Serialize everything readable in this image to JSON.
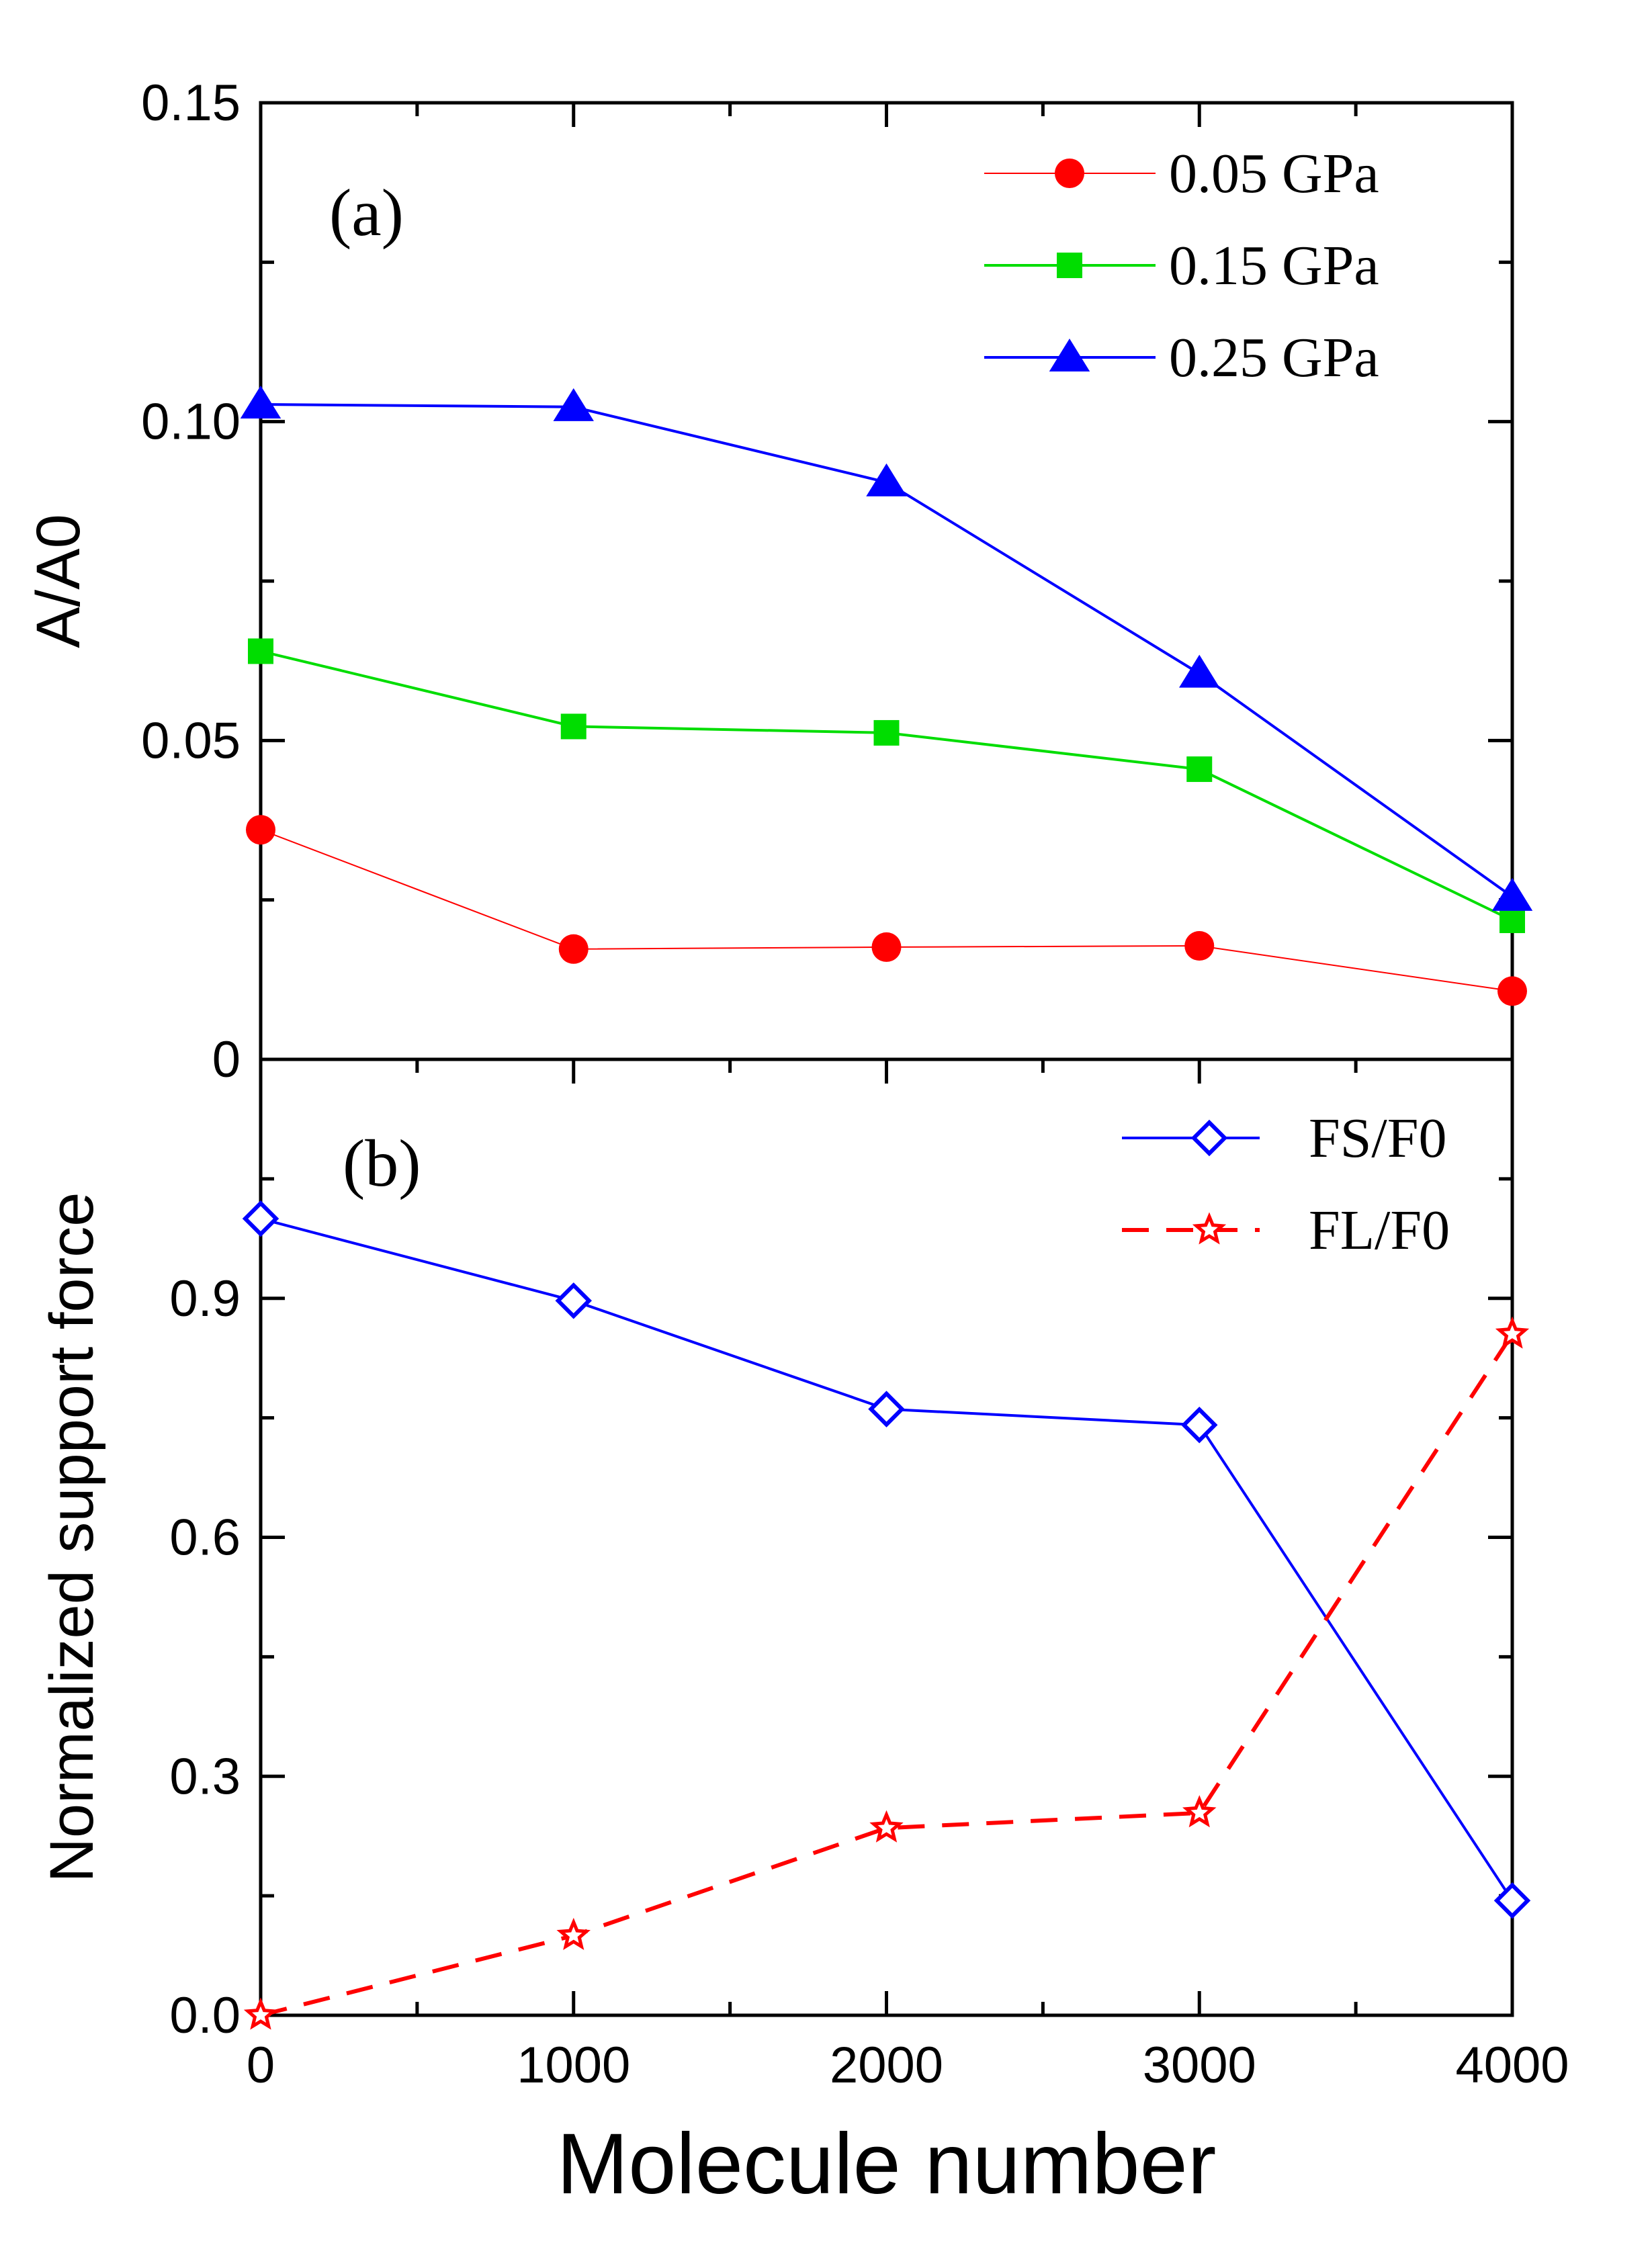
{
  "chart_data": [
    {
      "type": "line",
      "panel_label": "(a)",
      "xlabel": "",
      "ylabel": "A/A0",
      "xlim": [
        0,
        4000
      ],
      "ylim": [
        0,
        0.15
      ],
      "y_ticks": [
        0,
        0.05,
        0.1,
        0.15
      ],
      "y_tick_labels": [
        "0",
        "0.05",
        "0.10",
        "0.15"
      ],
      "x": [
        0,
        1000,
        2000,
        3000,
        4000
      ],
      "series": [
        {
          "name": "0.05 GPa",
          "color": "#ff0000",
          "marker": "circle",
          "line": "solid-thin",
          "values": [
            0.036,
            0.0173,
            0.0176,
            0.0178,
            0.0107
          ]
        },
        {
          "name": "0.15 GPa",
          "color": "#00dd00",
          "marker": "square",
          "line": "solid",
          "values": [
            0.064,
            0.0522,
            0.0512,
            0.0455,
            0.0218
          ]
        },
        {
          "name": "0.25 GPa",
          "color": "#0000ff",
          "marker": "triangle",
          "line": "solid",
          "values": [
            0.1027,
            0.1023,
            0.0905,
            0.0605,
            0.0255
          ]
        }
      ],
      "legend_position": "top-right"
    },
    {
      "type": "line",
      "panel_label": "(b)",
      "xlabel": "Molecule number",
      "ylabel": "Normalized support force",
      "xlim": [
        0,
        4000
      ],
      "ylim": [
        0,
        1.2
      ],
      "x_ticks": [
        0,
        1000,
        2000,
        3000,
        4000
      ],
      "x_tick_labels": [
        "0",
        "1000",
        "2000",
        "3000",
        "4000"
      ],
      "y_ticks": [
        0,
        0.3,
        0.6,
        0.9
      ],
      "y_tick_labels": [
        "0.0",
        "0.3",
        "0.6",
        "0.9"
      ],
      "x": [
        0,
        1000,
        2000,
        3000,
        4000
      ],
      "series": [
        {
          "name": "FS/F0",
          "color": "#0000ff",
          "marker": "diamond-open",
          "line": "solid",
          "values": [
            1.0,
            0.897,
            0.761,
            0.741,
            0.144
          ]
        },
        {
          "name": "FL/F0",
          "color": "#ff0000",
          "marker": "star-open",
          "line": "dashed",
          "values": [
            0.0,
            0.1,
            0.235,
            0.254,
            0.855
          ]
        }
      ],
      "legend_position": "top-right"
    }
  ]
}
